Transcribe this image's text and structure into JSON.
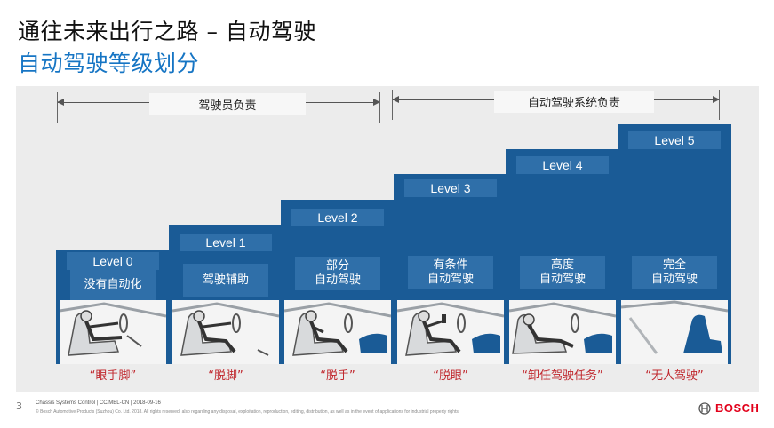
{
  "title": "通往未来出行之路 – 自动驾驶",
  "subtitle": "自动驾驶等级划分",
  "header_left": "驾驶员负责",
  "header_right": "自动驾驶系统负责",
  "levels": [
    {
      "level": "Level 0",
      "desc": [
        "没有自动化"
      ],
      "nick": "“眼手脚”"
    },
    {
      "level": "Level 1",
      "desc": [
        "驾驶辅助"
      ],
      "nick": "“脱脚”"
    },
    {
      "level": "Level 2",
      "desc": [
        "部分",
        "自动驾驶"
      ],
      "nick": "“脱手”"
    },
    {
      "level": "Level 3",
      "desc": [
        "有条件",
        "自动驾驶"
      ],
      "nick": "“脱眼”"
    },
    {
      "level": "Level 4",
      "desc": [
        "高度",
        "自动驾驶"
      ],
      "nick": "“卸任驾驶任务”"
    },
    {
      "level": "Level 5",
      "desc": [
        "完全",
        "自动驾驶"
      ],
      "nick": "“无人驾驶”"
    }
  ],
  "footer": {
    "page": "3",
    "line1": "Chassis Systems Control | CC/MBL-CN | 2018-09-16",
    "line2": "© Bosch Automotive Products (Suzhou) Co. Ltd. 2018. All rights reserved, also regarding any disposal, exploitation, reproduction, editing, distribution, as well as in the event of applications for industrial property rights."
  },
  "logo_text": "BOSCH",
  "colors": {
    "level_block": "#1a5b96",
    "label_box": "#2f6fa9",
    "nickname": "#c0272d",
    "subtitle": "#1675c4",
    "brand": "#e2001a"
  }
}
